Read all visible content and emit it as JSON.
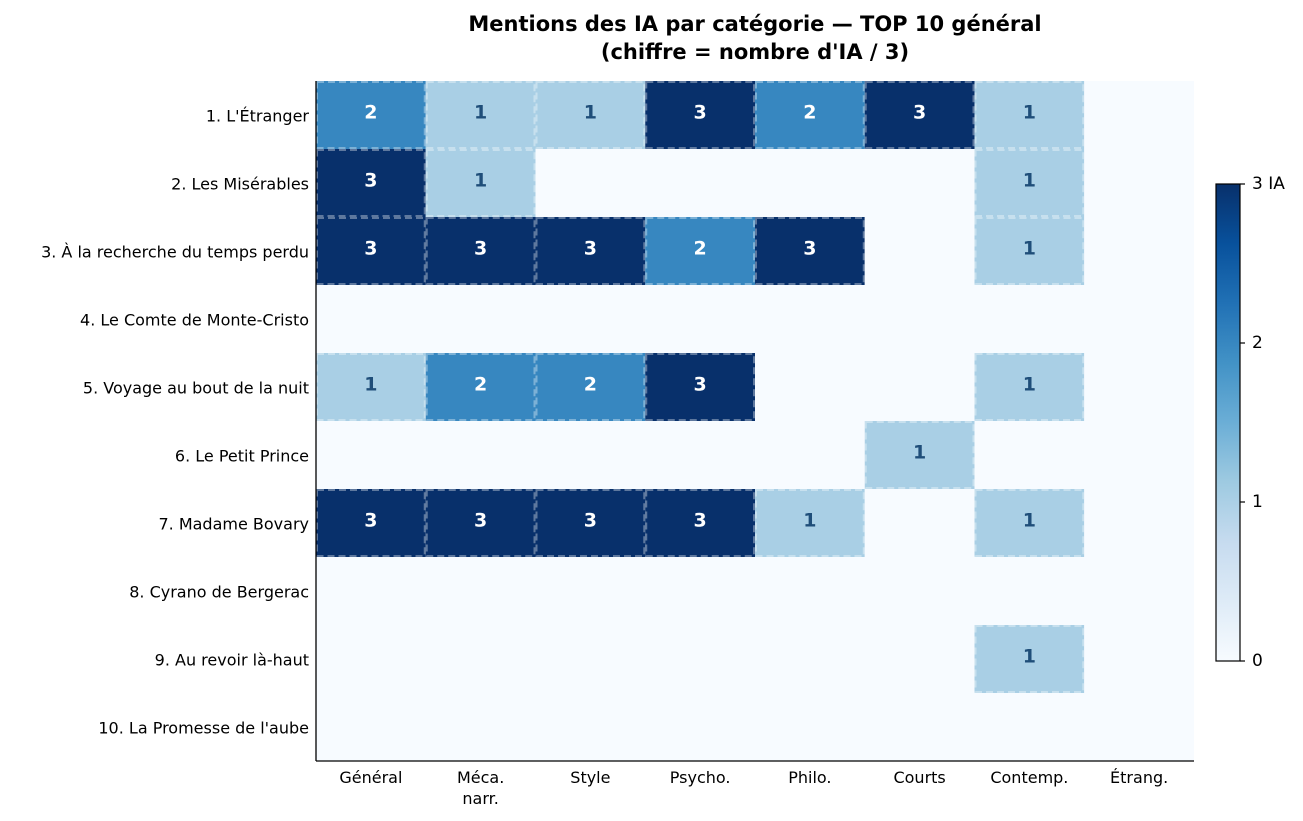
{
  "chart_data": {
    "type": "heatmap",
    "title": "Mentions des IA par catégorie — TOP 10 général",
    "subtitle": "(chiffre = nombre d'IA / 3)",
    "columns": [
      "Général",
      "Méca.\nnarr.",
      "Style",
      "Psycho.",
      "Philo.",
      "Courts",
      "Contemp.",
      "Étrang."
    ],
    "rows": [
      "1. L'Étranger",
      "2. Les Misérables",
      "3. À la recherche du temps perdu",
      "4. Le Comte de Monte-Cristo",
      "5. Voyage au bout de la nuit",
      "6. Le Petit Prince",
      "7. Madame Bovary",
      "8. Cyrano de Bergerac",
      "9. Au revoir là-haut",
      "10. La Promesse de l'aube"
    ],
    "values": [
      [
        2,
        1,
        1,
        3,
        2,
        3,
        1,
        0
      ],
      [
        3,
        1,
        0,
        0,
        0,
        0,
        1,
        0
      ],
      [
        3,
        3,
        3,
        2,
        3,
        0,
        1,
        0
      ],
      [
        0,
        0,
        0,
        0,
        0,
        0,
        0,
        0
      ],
      [
        1,
        2,
        2,
        3,
        0,
        0,
        1,
        0
      ],
      [
        0,
        0,
        0,
        0,
        0,
        1,
        0,
        0
      ],
      [
        3,
        3,
        3,
        3,
        1,
        0,
        1,
        0
      ],
      [
        0,
        0,
        0,
        0,
        0,
        0,
        0,
        0
      ],
      [
        0,
        0,
        0,
        0,
        0,
        0,
        1,
        0
      ],
      [
        0,
        0,
        0,
        0,
        0,
        0,
        0,
        0
      ]
    ],
    "colorbar": {
      "ticks": [
        "0",
        "1",
        "2",
        "3 IA"
      ],
      "range": [
        0,
        3
      ],
      "colormap": "Blues"
    },
    "colors": {
      "zero": "#f7fbff",
      "one": "#a9cfe5",
      "two": "#3787c0",
      "three": "#08306b",
      "label_light": "#ffffff",
      "label_dark": "#1f4e79"
    }
  }
}
